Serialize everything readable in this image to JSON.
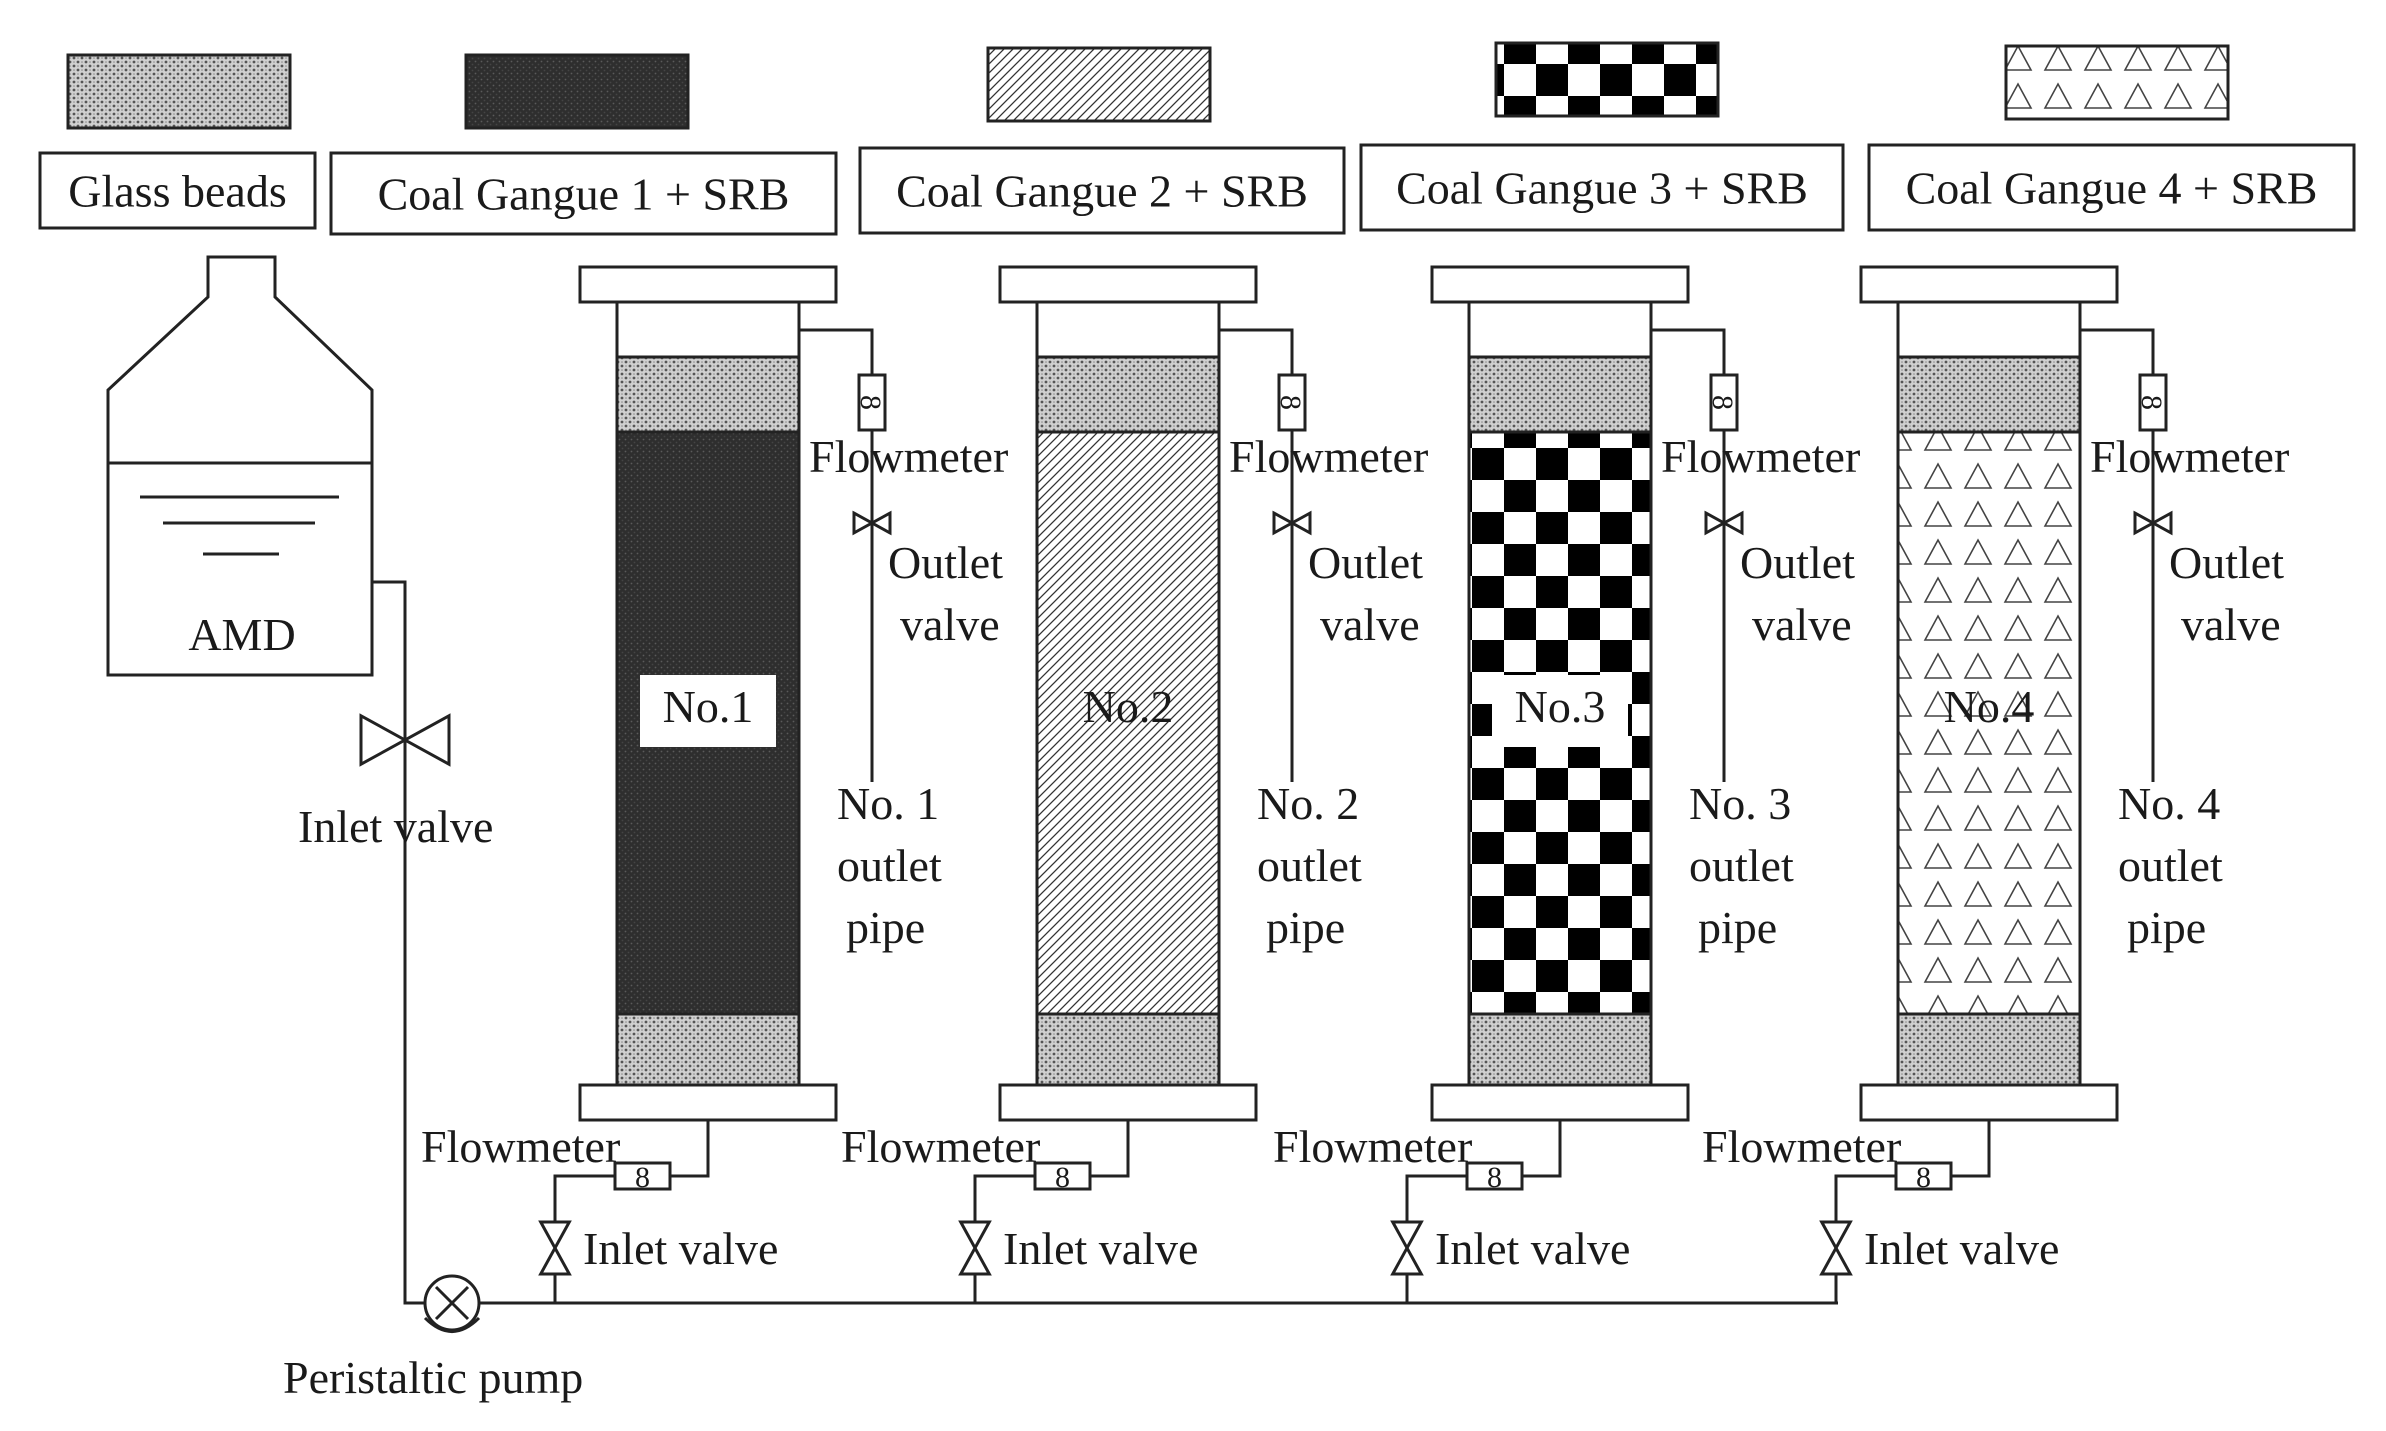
{
  "legend": [
    {
      "pattern": "glass",
      "label": "Glass beads"
    },
    {
      "pattern": "cg1",
      "label": "Coal Gangue 1 + SRB"
    },
    {
      "pattern": "cg2",
      "label": "Coal Gangue 2 + SRB"
    },
    {
      "pattern": "cg3",
      "label": "Coal Gangue 3 + SRB"
    },
    {
      "pattern": "cg4",
      "label": "Coal Gangue 4 + SRB"
    }
  ],
  "tank": {
    "label": "AMD"
  },
  "main_inlet_valve": {
    "label": "Inlet valve"
  },
  "pump": {
    "label": "Peristaltic pump"
  },
  "columns": [
    {
      "id": "No.1",
      "fill": "cg1",
      "top_flowmeter": "Flowmeter",
      "outlet_valve": [
        "Outlet",
        "valve"
      ],
      "outlet_pipe": [
        "No. 1",
        "outlet",
        "pipe"
      ],
      "bottom_flowmeter": "Flowmeter",
      "inlet_valve": "Inlet valve"
    },
    {
      "id": "No.2",
      "fill": "cg2",
      "top_flowmeter": "Flowmeter",
      "outlet_valve": [
        "Outlet",
        "valve"
      ],
      "outlet_pipe": [
        "No. 2",
        "outlet",
        "pipe"
      ],
      "bottom_flowmeter": "Flowmeter",
      "inlet_valve": "Inlet valve"
    },
    {
      "id": "No.3",
      "fill": "cg3",
      "top_flowmeter": "Flowmeter",
      "outlet_valve": [
        "Outlet",
        "valve"
      ],
      "outlet_pipe": [
        "No. 3",
        "outlet",
        "pipe"
      ],
      "bottom_flowmeter": "Flowmeter",
      "inlet_valve": "Inlet valve"
    },
    {
      "id": "No.4",
      "fill": "cg4",
      "top_flowmeter": "Flowmeter",
      "outlet_valve": [
        "Outlet",
        "valve"
      ],
      "outlet_pipe": [
        "No. 4",
        "outlet",
        "pipe"
      ],
      "bottom_flowmeter": "Flowmeter",
      "inlet_valve": "Inlet valve"
    }
  ],
  "flowmeter_glyph": "8",
  "colors": {
    "line": "#222222",
    "dark_fill": "#2e2e2e",
    "background": "#ffffff"
  }
}
